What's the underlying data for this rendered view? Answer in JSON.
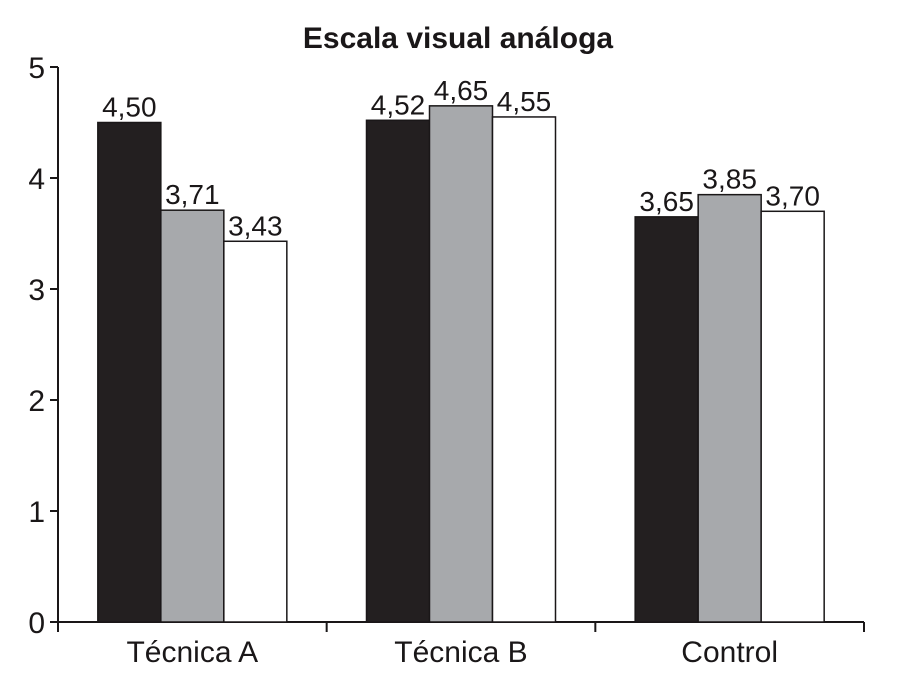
{
  "chart_data": {
    "type": "bar",
    "title": "Escala visual análoga",
    "xlabel": "",
    "ylabel": "",
    "ylim": [
      0,
      5
    ],
    "yticks": [
      "0",
      "1",
      "2",
      "3",
      "4",
      "5"
    ],
    "categories": [
      "Técnica A",
      "Técnica B",
      "Control"
    ],
    "series": [
      {
        "values": [
          4.5,
          4.52,
          3.65
        ],
        "labels": [
          "4,50",
          "4,52",
          "3,65"
        ],
        "color": "#231f20"
      },
      {
        "values": [
          3.71,
          4.65,
          3.85
        ],
        "labels": [
          "3,71",
          "4,65",
          "3,85"
        ],
        "color": "#a7a9ac"
      },
      {
        "values": [
          3.43,
          4.55,
          3.7
        ],
        "labels": [
          "3,43",
          "4,55",
          "3,70"
        ],
        "color": "#ffffff"
      }
    ],
    "grid": false,
    "legend": "none"
  }
}
